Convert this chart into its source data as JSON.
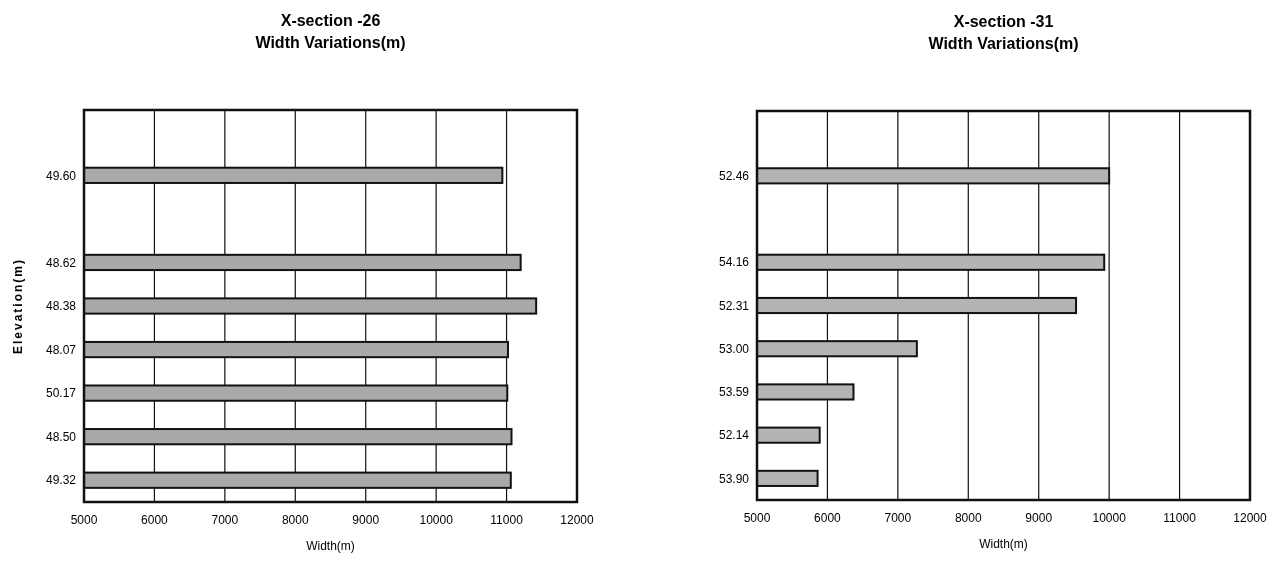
{
  "chart_data": [
    {
      "type": "bar",
      "orientation": "horizontal",
      "title": "X-section -26",
      "subtitle": "Width Variations(m)",
      "xlabel": "Width(m)",
      "ylabel": "Elevation(m)",
      "categories": [
        null,
        "49.60",
        null,
        "48.62",
        "48.38",
        "48.07",
        "50.17",
        "48.50",
        "49.32"
      ],
      "values": [
        null,
        10940,
        null,
        11200,
        11420,
        11020,
        11010,
        11070,
        11060
      ],
      "color": "#a9a9a9",
      "xlim": [
        5000,
        12000
      ],
      "xticks": [
        5000,
        6000,
        7000,
        8000,
        9000,
        10000,
        11000,
        12000
      ],
      "grid": "x"
    },
    {
      "type": "bar",
      "orientation": "horizontal",
      "title": "X-section -31",
      "subtitle": "Width Variations(m)",
      "xlabel": "Width(m)",
      "categories": [
        null,
        "52.46",
        null,
        "54.16",
        "52.31",
        "53.00",
        "53.59",
        "52.14",
        "53.90"
      ],
      "values": [
        null,
        10000,
        null,
        9930,
        9530,
        7270,
        6370,
        5890,
        5860
      ],
      "color": "#b4b4b4",
      "xlim": [
        5000,
        12000
      ],
      "xticks": [
        5000,
        6000,
        7000,
        8000,
        9000,
        10000,
        11000,
        12000
      ],
      "grid": "x"
    }
  ]
}
